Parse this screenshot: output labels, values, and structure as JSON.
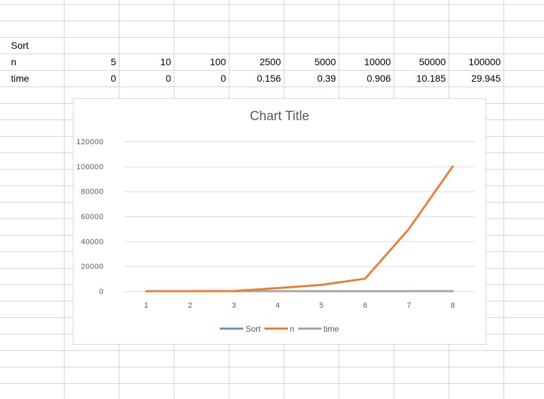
{
  "sheet": {
    "title_cell": "Sort",
    "row_n": {
      "label": "n",
      "values": [
        "5",
        "10",
        "100",
        "2500",
        "5000",
        "10000",
        "50000",
        "100000"
      ]
    },
    "row_time": {
      "label": "time",
      "values": [
        "0",
        "0",
        "0",
        "0.156",
        "0.39",
        "0.906",
        "10.185",
        "29.945"
      ]
    }
  },
  "colors": {
    "sort": "#5b9bd5",
    "n": "#ed7d31",
    "time": "#a5a5a5",
    "gridline": "#d9d9d9",
    "axis_text": "#595959"
  },
  "chart_data": {
    "type": "line",
    "title": "Chart Title",
    "categories": [
      "1",
      "2",
      "3",
      "4",
      "5",
      "6",
      "7",
      "8"
    ],
    "series": [
      {
        "name": "Sort",
        "values": [
          null,
          null,
          null,
          null,
          null,
          null,
          null,
          null
        ]
      },
      {
        "name": "n",
        "values": [
          5,
          10,
          100,
          2500,
          5000,
          10000,
          50000,
          100000
        ]
      },
      {
        "name": "time",
        "values": [
          0,
          0,
          0,
          0.156,
          0.39,
          0.906,
          10.185,
          29.945
        ]
      }
    ],
    "y_ticks": [
      "0",
      "20000",
      "40000",
      "60000",
      "80000",
      "100000",
      "120000"
    ],
    "ylim": [
      0,
      120000
    ],
    "grid": true,
    "legend_position": "bottom"
  }
}
